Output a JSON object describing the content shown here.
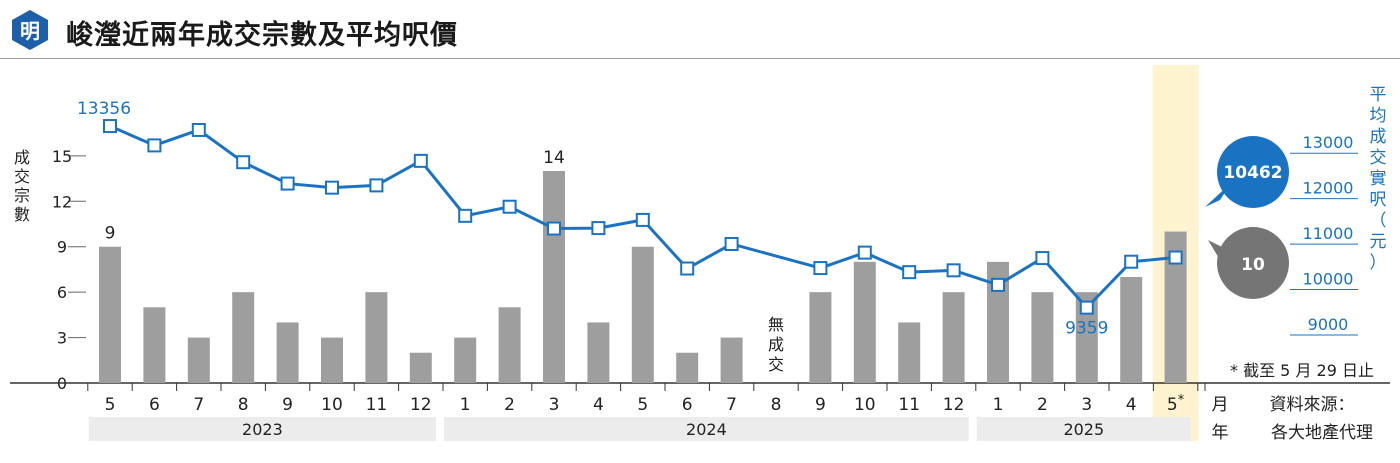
{
  "header": {
    "logo_text": "明",
    "title": "峻瀅近兩年成交宗數及平均呎價"
  },
  "chart_data": {
    "type": "bar+line",
    "categories": [
      "5",
      "6",
      "7",
      "8",
      "9",
      "10",
      "11",
      "12",
      "1",
      "2",
      "3",
      "4",
      "5",
      "6",
      "7",
      "8",
      "9",
      "10",
      "11",
      "12",
      "1",
      "2",
      "3",
      "4",
      "5*"
    ],
    "year_groups": [
      {
        "label": "2023",
        "span": 8
      },
      {
        "label": "2024",
        "span": 12
      },
      {
        "label": "2025",
        "span": 5
      }
    ],
    "bars": {
      "values": [
        9,
        5,
        3,
        6,
        4,
        3,
        6,
        2,
        3,
        5,
        14,
        4,
        9,
        2,
        3,
        0,
        6,
        8,
        4,
        6,
        8,
        6,
        6,
        7,
        10
      ],
      "axis_label": "成交宗數",
      "ylim": [
        0,
        21
      ],
      "ticks": [
        0,
        3,
        6,
        9,
        12,
        15
      ],
      "color": "#9e9e9e",
      "callout": "10"
    },
    "line": {
      "values": [
        13356,
        12930,
        13270,
        12560,
        12090,
        12000,
        12050,
        12590,
        11380,
        11580,
        11100,
        11110,
        11290,
        10220,
        10760,
        null,
        10230,
        10570,
        10140,
        10180,
        9860,
        10450,
        9359,
        10370,
        10462
      ],
      "axis_label": "平均成交實呎（元）",
      "ylim": [
        7700,
        14700
      ],
      "ticks": [
        9000,
        10000,
        11000,
        12000,
        13000
      ],
      "color": "#1a73c2",
      "callout": "10462"
    },
    "annotations": {
      "bar_labels": [
        {
          "index": 0,
          "text": "9"
        },
        {
          "index": 10,
          "text": "14"
        }
      ],
      "line_labels": [
        {
          "index": 0,
          "text": "13356"
        },
        {
          "index": 22,
          "text": "9359"
        }
      ],
      "no_deal_index": 15,
      "no_deal_text": "無成交",
      "month_unit": "月",
      "year_unit": "年",
      "highlight_index": 24,
      "highlight_color": "#fdf3cf",
      "footnote": "* 截至 5 月 29 日止",
      "source_line1": "資料來源：",
      "source_line2": "各大地產代理"
    }
  }
}
